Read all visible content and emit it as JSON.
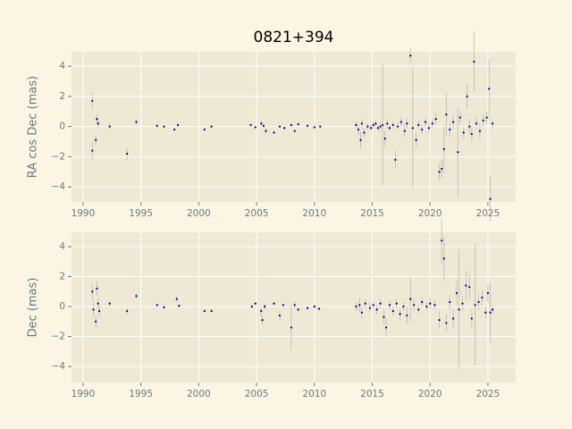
{
  "chart_data": [
    {
      "type": "scatter",
      "title": "0821+394",
      "ylabel": "RA cos Dec (mas)",
      "x": [
        1990.8,
        1990.8,
        1991.1,
        1991.2,
        1991.3,
        1992.3,
        1993.8,
        1994.6,
        1996.4,
        1997.0,
        1997.9,
        1998.2,
        2000.5,
        2001.1,
        2004.5,
        2004.9,
        2005.4,
        2005.6,
        2005.8,
        2006.5,
        2007.0,
        2007.4,
        2008.0,
        2008.3,
        2008.6,
        2009.4,
        2010.0,
        2010.5,
        2013.6,
        2013.8,
        2014.0,
        2014.1,
        2014.3,
        2014.6,
        2014.9,
        2015.1,
        2015.3,
        2015.5,
        2015.7,
        2015.9,
        2016.1,
        2016.3,
        2016.5,
        2016.8,
        2017.0,
        2017.2,
        2017.5,
        2017.8,
        2018.0,
        2018.3,
        2018.5,
        2018.8,
        2019.0,
        2019.3,
        2019.6,
        2019.9,
        2020.2,
        2020.5,
        2020.8,
        2021.0,
        2021.2,
        2021.4,
        2021.7,
        2022.0,
        2022.4,
        2022.6,
        2022.9,
        2023.2,
        2023.4,
        2023.6,
        2023.8,
        2024.0,
        2024.3,
        2024.6,
        2024.9,
        2025.1,
        2025.2,
        2025.4
      ],
      "values": [
        1.7,
        -1.6,
        -0.9,
        0.5,
        0.2,
        0.0,
        -1.8,
        0.3,
        0.05,
        0.0,
        -0.2,
        0.1,
        -0.2,
        0.0,
        0.1,
        -0.05,
        0.2,
        0.05,
        -0.3,
        -0.4,
        0.0,
        -0.1,
        0.1,
        -0.3,
        0.15,
        0.05,
        -0.05,
        0.0,
        0.1,
        -0.2,
        -0.9,
        0.2,
        -0.4,
        0.0,
        -0.1,
        0.1,
        0.2,
        -0.1,
        0.0,
        0.1,
        -0.8,
        0.2,
        -0.1,
        0.1,
        -2.2,
        0.0,
        0.3,
        -0.3,
        0.2,
        4.7,
        -0.1,
        -0.9,
        0.1,
        -0.2,
        0.3,
        -0.1,
        0.2,
        0.5,
        -3.0,
        -2.8,
        -1.5,
        0.8,
        -0.2,
        0.3,
        -1.7,
        0.6,
        -0.4,
        2.0,
        0.0,
        -0.5,
        4.3,
        0.2,
        -0.3,
        0.4,
        0.6,
        2.5,
        -4.8,
        0.2
      ],
      "errors": [
        0.6,
        0.6,
        0.3,
        0.3,
        0.3,
        0.2,
        0.4,
        0.2,
        0.1,
        0.1,
        0.1,
        0.1,
        0.1,
        0.1,
        0.1,
        0.1,
        0.2,
        0.2,
        0.2,
        0.1,
        0.1,
        0.1,
        0.1,
        0.1,
        0.1,
        0.1,
        0.1,
        0.1,
        0.2,
        0.4,
        0.6,
        0.3,
        0.3,
        0.2,
        0.2,
        0.2,
        0.2,
        0.2,
        0.3,
        4.0,
        0.5,
        0.3,
        0.2,
        0.2,
        0.6,
        0.2,
        0.3,
        0.4,
        0.3,
        0.5,
        4.0,
        0.5,
        0.3,
        0.3,
        0.3,
        0.3,
        0.3,
        0.4,
        0.6,
        0.6,
        1.5,
        1.4,
        0.5,
        0.5,
        3.0,
        0.4,
        0.4,
        0.8,
        0.5,
        0.5,
        2.0,
        0.4,
        0.5,
        0.4,
        0.4,
        2.0,
        1.5,
        0.3
      ],
      "color": "#000080",
      "error_color": "#9a9a9a",
      "xlim": [
        1989.0,
        2027.4
      ],
      "ylim": [
        -5.0,
        4.95
      ],
      "xticks": [
        1990,
        1995,
        2000,
        2005,
        2010,
        2015,
        2020,
        2025
      ],
      "yticks": [
        {
          "value": -4,
          "label": "−4"
        },
        {
          "value": -2,
          "label": "−2"
        },
        0,
        2,
        4
      ],
      "grid": true
    },
    {
      "type": "scatter",
      "ylabel": "Dec (mas)",
      "x": [
        1990.8,
        1990.9,
        1991.1,
        1991.2,
        1991.3,
        1991.4,
        1992.3,
        1993.8,
        1994.6,
        1996.4,
        1997.0,
        1998.1,
        1998.3,
        2000.5,
        2001.1,
        2004.6,
        2004.9,
        2005.4,
        2005.5,
        2005.7,
        2006.5,
        2007.0,
        2007.3,
        2008.0,
        2008.3,
        2008.6,
        2009.4,
        2010.0,
        2010.4,
        2013.6,
        2013.9,
        2014.1,
        2014.4,
        2014.8,
        2015.1,
        2015.4,
        2015.7,
        2016.0,
        2016.2,
        2016.5,
        2016.8,
        2017.1,
        2017.4,
        2017.7,
        2018.0,
        2018.3,
        2018.6,
        2019.0,
        2019.3,
        2019.7,
        2020.0,
        2020.4,
        2020.8,
        2021.0,
        2021.2,
        2021.4,
        2021.7,
        2022.0,
        2022.3,
        2022.5,
        2022.8,
        2023.1,
        2023.4,
        2023.6,
        2023.9,
        2024.2,
        2024.5,
        2024.8,
        2025.0,
        2025.2,
        2025.4
      ],
      "values": [
        1.0,
        -0.2,
        -1.0,
        1.2,
        0.2,
        -0.3,
        0.2,
        -0.3,
        0.7,
        0.1,
        -0.05,
        0.5,
        0.05,
        -0.3,
        -0.3,
        0.0,
        0.2,
        -0.3,
        -0.9,
        0.0,
        0.2,
        -0.6,
        0.1,
        -1.4,
        0.1,
        -0.2,
        -0.1,
        0.0,
        -0.15,
        0.0,
        0.1,
        -0.4,
        0.2,
        -0.1,
        0.1,
        -0.2,
        0.2,
        -0.7,
        -1.4,
        0.1,
        -0.3,
        0.2,
        -0.5,
        0.0,
        -0.6,
        0.5,
        0.1,
        -0.2,
        0.3,
        0.0,
        0.2,
        0.1,
        -0.9,
        4.4,
        3.2,
        -1.1,
        0.3,
        -0.8,
        0.9,
        -0.2,
        0.2,
        1.4,
        1.3,
        -0.8,
        0.1,
        0.3,
        0.6,
        -0.4,
        0.9,
        -0.4,
        -0.2
      ],
      "errors": [
        0.6,
        0.5,
        0.4,
        0.5,
        0.4,
        0.4,
        0.2,
        0.2,
        0.2,
        0.1,
        0.1,
        0.2,
        0.1,
        0.1,
        0.1,
        0.1,
        0.1,
        0.3,
        0.3,
        0.2,
        0.1,
        0.3,
        0.1,
        1.5,
        0.2,
        0.1,
        0.1,
        0.1,
        0.1,
        0.3,
        0.5,
        0.4,
        0.3,
        0.3,
        0.2,
        0.3,
        0.3,
        0.5,
        0.6,
        0.3,
        0.3,
        0.3,
        0.4,
        0.3,
        0.6,
        1.5,
        0.4,
        0.3,
        0.3,
        0.3,
        0.4,
        0.3,
        0.6,
        1.5,
        1.5,
        0.6,
        0.5,
        0.6,
        0.8,
        4.0,
        0.5,
        1.0,
        0.8,
        0.6,
        4.0,
        0.5,
        0.5,
        0.4,
        0.6,
        2.0,
        0.3
      ],
      "color": "#000080",
      "error_color": "#9a9a9a",
      "xlim": [
        1989.0,
        2027.4
      ],
      "ylim": [
        -5.07,
        4.95
      ],
      "xticks": [
        1990,
        1995,
        2000,
        2005,
        2010,
        2015,
        2020,
        2025
      ],
      "yticks": [
        {
          "value": -4,
          "label": "−4"
        },
        {
          "value": -2,
          "label": "−2"
        },
        0,
        2,
        4
      ],
      "grid": true
    }
  ]
}
